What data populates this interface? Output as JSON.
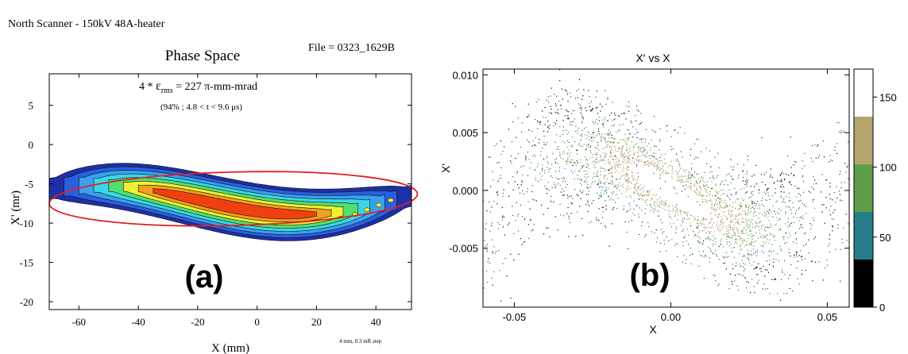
{
  "panel_a": {
    "header": "North Scanner  -  150kV   48A-heater",
    "file": "File = 0323_1629B",
    "title": "Phase Space",
    "emittance": {
      "prefix": "4 * ",
      "symbol": "ε",
      "subscript": "rms",
      "suffix": " = 227 π-mm-mrad"
    },
    "condition": "(94% ; 4.8 < t < 9.6   μs)",
    "label": "(a)",
    "step_note": "4 mm, 0.3 mR step",
    "colors": {
      "contour": [
        "#1e2fa8",
        "#2a60e0",
        "#3aa0f0",
        "#38d8e8",
        "#50e070",
        "#f0f030",
        "#f0a020",
        "#f04010"
      ],
      "ellipse": "#e02020"
    }
  },
  "panel_b": {
    "label": "(b)",
    "colorbar": {
      "colors": [
        "#000000",
        "#287d8a",
        "#5e9e48",
        "#b6a46e",
        "#ffffff"
      ],
      "ticks": [
        "0",
        "50",
        "100",
        "150"
      ],
      "tick_values": [
        0,
        50,
        100,
        150
      ],
      "range": [
        0,
        170
      ]
    }
  },
  "chart_data": [
    {
      "type": "heatmap",
      "title": "Phase Space",
      "xlabel": "X (mm)",
      "ylabel": "X' (mr)",
      "xlim": [
        -70,
        52
      ],
      "ylim": [
        -21,
        9
      ],
      "xticks": [
        "-60",
        "-40",
        "-20",
        "0",
        "20",
        "40"
      ],
      "xtick_values": [
        -60,
        -40,
        -20,
        0,
        20,
        40
      ],
      "yticks": [
        "5",
        "0",
        "-5",
        "-10",
        "-15",
        "-20"
      ],
      "ytick_values": [
        5,
        0,
        -5,
        -10,
        -15,
        -20
      ],
      "ellipse": {
        "center": [
          -8,
          -6.9
        ],
        "semi_axes": [
          62,
          3.4
        ]
      }
    },
    {
      "type": "scatter",
      "title": "X' vs X",
      "xlabel": "X",
      "ylabel": "X'",
      "xlim": [
        -0.06,
        0.057
      ],
      "ylim": [
        -0.0101,
        0.0105
      ],
      "xticks": [
        "-0.05",
        "0.00",
        "0.05"
      ],
      "xtick_values": [
        -0.05,
        0.0,
        0.05
      ],
      "yticks": [
        "0.010",
        "0.005",
        "0.000",
        "-0.005"
      ],
      "ytick_values": [
        0.01,
        0.005,
        0.0,
        -0.005
      ],
      "colorbar_range": [
        0,
        170
      ]
    }
  ]
}
